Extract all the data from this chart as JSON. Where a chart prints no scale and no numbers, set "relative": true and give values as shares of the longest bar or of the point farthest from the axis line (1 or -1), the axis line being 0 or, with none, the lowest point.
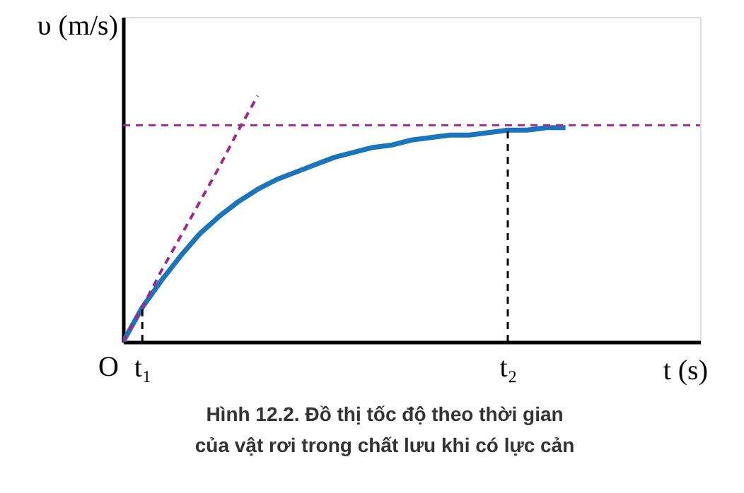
{
  "chart_data": {
    "type": "line",
    "relative": true,
    "xlabel": "t (s)",
    "ylabel": "υ (m/s)",
    "categories": [
      null,
      "t₁",
      null,
      null,
      null,
      null,
      null,
      null,
      null,
      null,
      null,
      null,
      null,
      null,
      null,
      null,
      null,
      null,
      null,
      null,
      "t₂",
      null,
      null,
      null,
      null,
      null,
      null,
      null,
      null,
      null,
      null
    ],
    "marker": "none",
    "series": [
      {
        "color": "#1b75bc",
        "line_style": "solid",
        "values": [
          0,
          0.14,
          0.25,
          0.35,
          0.44,
          0.51,
          0.57,
          0.62,
          0.66,
          0.69,
          0.72,
          0.75,
          0.77,
          0.79,
          0.8,
          0.82,
          0.83,
          0.84,
          0.84,
          0.85,
          0.86,
          0.86,
          0.87,
          0.87,
          null,
          null,
          null,
          null,
          null,
          null,
          null
        ]
      },
      {
        "color": "#9e2a8c",
        "line_style": "dashed",
        "values": [
          0,
          0.14,
          0.29,
          0.43,
          0.57,
          0.71,
          0.86,
          1,
          null,
          null,
          null,
          null,
          null,
          null,
          null,
          null,
          null,
          null,
          null,
          null,
          null,
          null,
          null,
          null,
          null,
          null,
          null,
          null,
          null,
          null,
          null
        ]
      }
    ],
    "ref_lines": [
      {
        "axis": "y",
        "value": 0.88,
        "color": "#9e2a8c",
        "line_style": "dashed"
      },
      {
        "axis": "x",
        "value": "t₁",
        "color": "#000000",
        "line_style": "dashed"
      },
      {
        "axis": "x",
        "value": "t₂",
        "color": "#000000",
        "line_style": "dashed"
      }
    ],
    "annotations": [
      "O",
      "Hình 12.2. Đồ thị tốc độ theo thời gian của vật rơi trong chất lưu khi có lực cản"
    ]
  }
}
